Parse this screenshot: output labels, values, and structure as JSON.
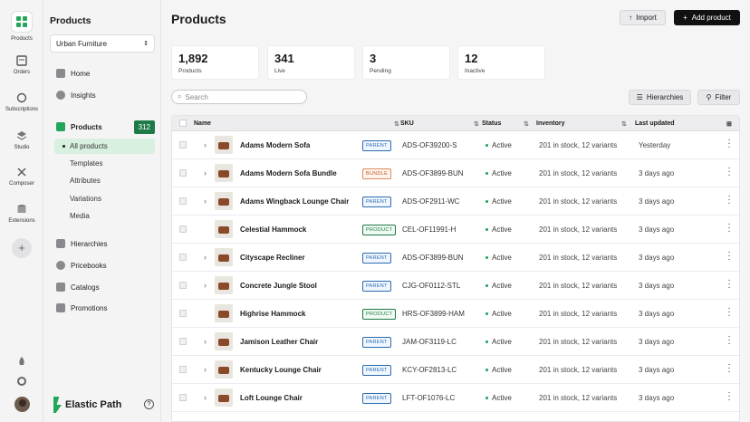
{
  "rail": {
    "items": [
      {
        "label": "Products",
        "icon": "grid-icon"
      },
      {
        "label": "Orders",
        "icon": "orders-icon"
      },
      {
        "label": "Subscriptions",
        "icon": "refresh-icon"
      },
      {
        "label": "Studio",
        "icon": "layers-icon"
      },
      {
        "label": "Composer",
        "icon": "composer-icon"
      },
      {
        "label": "Extensions",
        "icon": "database-icon"
      }
    ],
    "add_label": "+"
  },
  "sidebar": {
    "title": "Products",
    "store": "Urban Furniture",
    "items": [
      {
        "label": "Home"
      },
      {
        "label": "Insights"
      },
      {
        "label": "Products",
        "count": "312"
      },
      {
        "label": "Hierarchies"
      },
      {
        "label": "Pricebooks"
      },
      {
        "label": "Catalogs"
      },
      {
        "label": "Promotions"
      }
    ],
    "subitems": [
      "All products",
      "Templates",
      "Attributes",
      "Variations",
      "Media"
    ],
    "brand": "Elastic Path",
    "help": "?"
  },
  "page": {
    "title": "Products",
    "import_label": "Import",
    "add_label": "Add product",
    "search_placeholder": "Search",
    "hierarchies_label": "Hierarchies",
    "filter_label": "Filter"
  },
  "stats": [
    {
      "value": "1,892",
      "label": "Products"
    },
    {
      "value": "341",
      "label": "Live"
    },
    {
      "value": "3",
      "label": "Pending"
    },
    {
      "value": "12",
      "label": "Inactive"
    }
  ],
  "table": {
    "columns": [
      "Name",
      "SKU",
      "Status",
      "Inventory",
      "Last updated"
    ],
    "rows": [
      {
        "name": "Adams Modern Sofa",
        "badge": "PARENT",
        "sku": "ADS-OF39200-S",
        "status": "Active",
        "inventory": "201 in stock, 12 variants",
        "updated": "Yesterday",
        "expandable": true
      },
      {
        "name": "Adams Modern Sofa Bundle",
        "badge": "BUNDLE",
        "sku": "ADS-OF3899-BUN",
        "status": "Active",
        "inventory": "201 in stock, 12 variants",
        "updated": "3 days ago",
        "expandable": true
      },
      {
        "name": "Adams Wingback Lounge Chair",
        "badge": "PARENT",
        "sku": "ADS-OF2911-WC",
        "status": "Active",
        "inventory": "201 in stock, 12 variants",
        "updated": "3 days ago",
        "expandable": true
      },
      {
        "name": "Celestial Hammock",
        "badge": "PRODUCT",
        "sku": "CEL-OF11991-H",
        "status": "Active",
        "inventory": "201 in stock, 12 variants",
        "updated": "3 days ago",
        "expandable": false
      },
      {
        "name": "Cityscape Recliner",
        "badge": "PARENT",
        "sku": "ADS-OF3899-BUN",
        "status": "Active",
        "inventory": "201 in stock, 12 variants",
        "updated": "3 days ago",
        "expandable": true
      },
      {
        "name": "Concrete Jungle Stool",
        "badge": "PARENT",
        "sku": "CJG-OF0112-STL",
        "status": "Active",
        "inventory": "201 in stock, 12 variants",
        "updated": "3 days ago",
        "expandable": true
      },
      {
        "name": "Highrise Hammock",
        "badge": "PRODUCT",
        "sku": "HRS-OF3899-HAM",
        "status": "Active",
        "inventory": "201 in stock, 12 variants",
        "updated": "3 days ago",
        "expandable": false
      },
      {
        "name": "Jamison Leather Chair",
        "badge": "PARENT",
        "sku": "JAM-OF3119-LC",
        "status": "Active",
        "inventory": "201 in stock, 12 variants",
        "updated": "3 days ago",
        "expandable": true
      },
      {
        "name": "Kentucky Lounge Chair",
        "badge": "PARENT",
        "sku": "KCY-OF2813-LC",
        "status": "Active",
        "inventory": "201 in stock, 12 variants",
        "updated": "3 days ago",
        "expandable": true
      },
      {
        "name": "Loft Lounge Chair",
        "badge": "PARENT",
        "sku": "LFT-OF1076-LC",
        "status": "Active",
        "inventory": "201 in stock, 12 variants",
        "updated": "3 days ago",
        "expandable": true
      }
    ]
  },
  "colors": {
    "accent": "#1e7a46",
    "brand": "#22a65a",
    "parent": "#2b6cb0",
    "bundle": "#c05621"
  }
}
